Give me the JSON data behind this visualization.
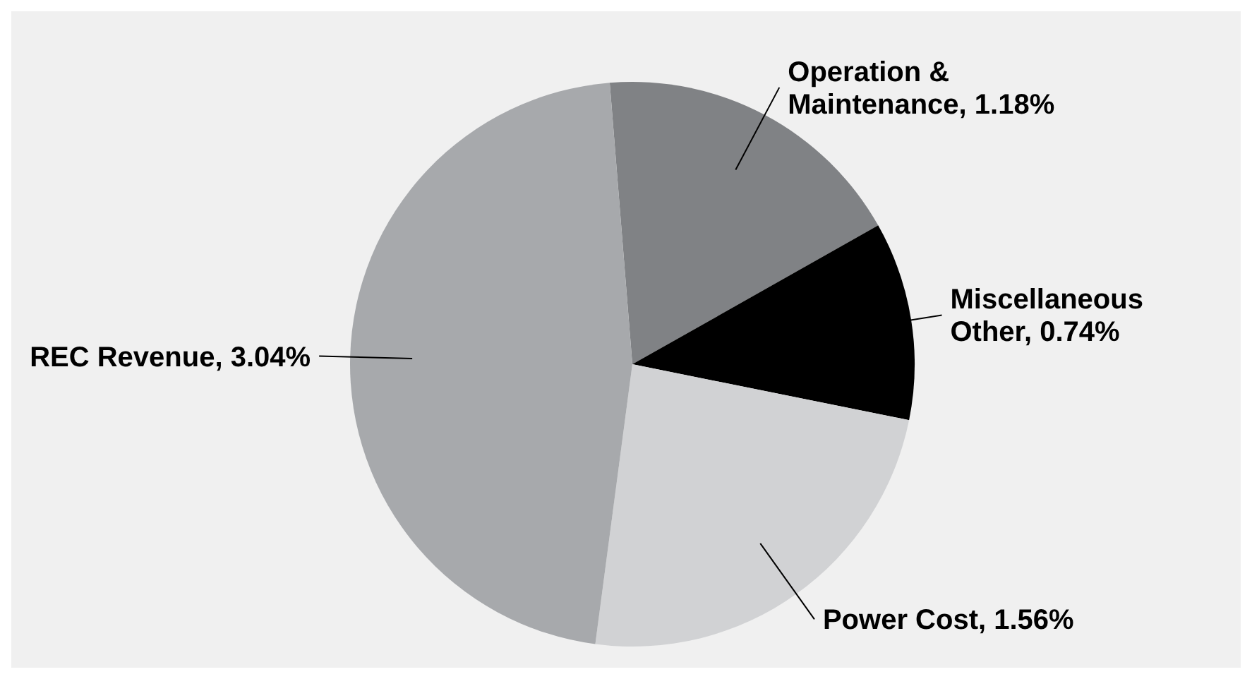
{
  "chart_data": {
    "type": "pie",
    "categories": [
      "Operation & Maintenance",
      "Miscellaneous Other",
      "Power Cost",
      "REC Revenue"
    ],
    "values": [
      1.18,
      0.74,
      1.56,
      3.04
    ],
    "colors": [
      "#808285",
      "#000000",
      "#d1d2d4",
      "#a7a9ac"
    ],
    "value_labels": [
      "1.18%",
      "0.74%",
      "1.56%",
      "3.04%"
    ],
    "legend": false
  }
}
